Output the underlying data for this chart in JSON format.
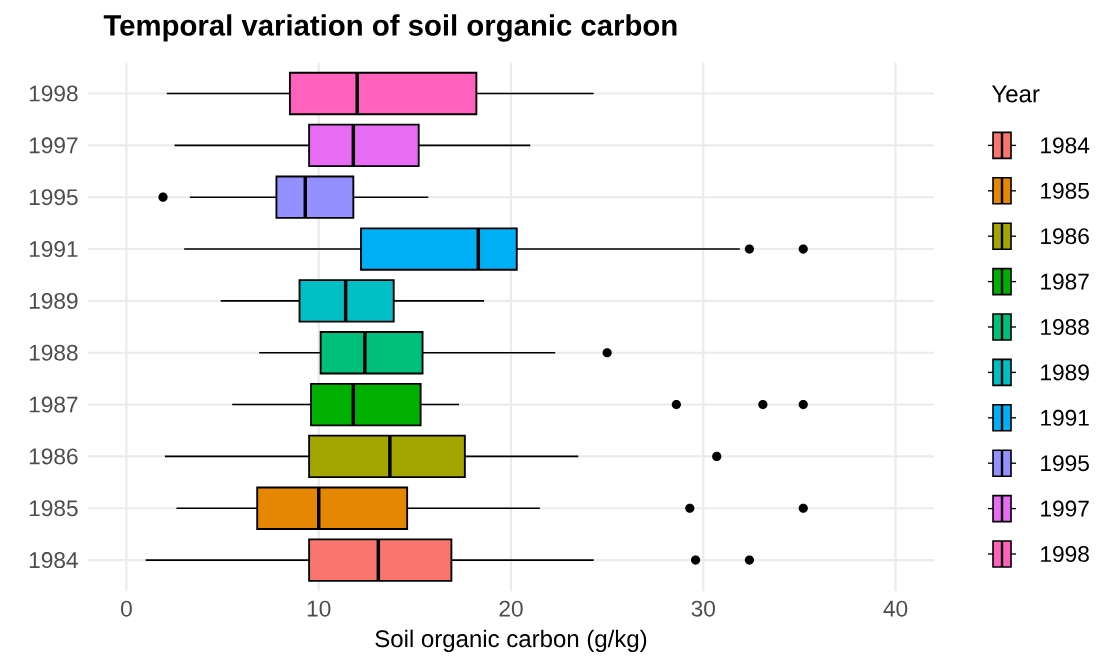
{
  "chart_data": {
    "type": "box",
    "title": "Temporal variation of soil organic carbon",
    "xlabel": "Soil organic carbon (g/kg)",
    "legend_title": "Year",
    "orientation": "horizontal",
    "categories": [
      "1998",
      "1997",
      "1995",
      "1991",
      "1989",
      "1988",
      "1987",
      "1986",
      "1985",
      "1984"
    ],
    "boxes": [
      {
        "low": 2.1,
        "q1": 8.5,
        "median": 12.0,
        "q3": 18.2,
        "high": 24.3
      },
      {
        "low": 2.5,
        "q1": 9.5,
        "median": 11.8,
        "q3": 15.2,
        "high": 21.0
      },
      {
        "low": 3.3,
        "q1": 7.8,
        "median": 9.3,
        "q3": 11.8,
        "high": 15.7,
        "outliers": [
          1.9
        ]
      },
      {
        "low": 3.0,
        "q1": 12.2,
        "median": 18.3,
        "q3": 20.3,
        "high": 31.9,
        "outliers": [
          32.4,
          35.2
        ]
      },
      {
        "low": 4.9,
        "q1": 9.0,
        "median": 11.4,
        "q3": 13.9,
        "high": 18.6
      },
      {
        "low": 6.9,
        "q1": 10.1,
        "median": 12.4,
        "q3": 15.4,
        "high": 22.3,
        "outliers": [
          25.0
        ]
      },
      {
        "low": 5.5,
        "q1": 9.6,
        "median": 11.8,
        "q3": 15.3,
        "high": 17.3,
        "outliers": [
          28.6,
          33.1,
          35.2
        ]
      },
      {
        "low": 2.0,
        "q1": 9.5,
        "median": 13.7,
        "q3": 17.6,
        "high": 23.5,
        "outliers": [
          30.7
        ]
      },
      {
        "low": 2.6,
        "q1": 6.8,
        "median": 10.0,
        "q3": 14.6,
        "high": 21.5,
        "outliers": [
          29.3,
          35.2
        ]
      },
      {
        "low": 1.0,
        "q1": 9.5,
        "median": 13.1,
        "q3": 16.9,
        "high": 24.3,
        "outliers": [
          29.6,
          32.4
        ]
      }
    ],
    "colors": [
      "#FF62BC",
      "#E76BF3",
      "#9590FF",
      "#00B0F6",
      "#00BFC4",
      "#00BF7D",
      "#00B000",
      "#A3A500",
      "#E58700",
      "#F8766D"
    ],
    "xlim": [
      -2,
      42
    ],
    "xticks": [
      0,
      10,
      20,
      30,
      40
    ],
    "grid": true
  }
}
